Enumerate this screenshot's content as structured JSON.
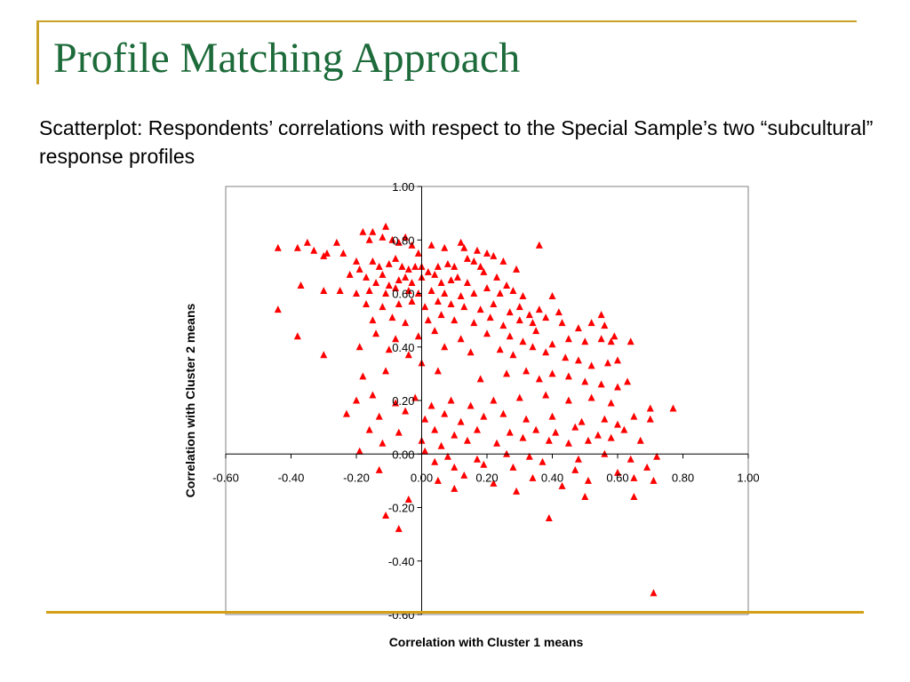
{
  "slide": {
    "title": "Profile Matching Approach",
    "subtitle": "Scatterplot:  Respondents’ correlations with respect to the Special Sample’s two “subcultural” response profiles"
  },
  "colors": {
    "title": "#1d6b3a",
    "accent_rule": "#c9a227",
    "marker": "#ff0000",
    "axis": "#000000",
    "plot_border": "#808080"
  },
  "chart_data": {
    "type": "scatter",
    "title": "",
    "xlabel": "Correlation with Cluster 1 means",
    "ylabel": "Correlation with Cluster 2 means",
    "xlim": [
      -0.6,
      1.0
    ],
    "ylim": [
      -0.6,
      1.0
    ],
    "xticks": [
      "-0.60",
      "-0.40",
      "-0.20",
      "0.00",
      "0.20",
      "0.40",
      "0.60",
      "0.80",
      "1.00"
    ],
    "yticks": [
      "-0.60",
      "-0.40",
      "-0.20",
      "0.00",
      "0.20",
      "0.40",
      "0.60",
      "0.80",
      "1.00"
    ],
    "grid": false,
    "legend": "none",
    "marker": "triangle",
    "series": [
      {
        "points": [
          [
            -0.44,
            0.77
          ],
          [
            -0.38,
            0.77
          ],
          [
            -0.35,
            0.79
          ],
          [
            -0.33,
            0.76
          ],
          [
            -0.3,
            0.74
          ],
          [
            -0.29,
            0.75
          ],
          [
            -0.26,
            0.79
          ],
          [
            -0.24,
            0.75
          ],
          [
            -0.2,
            0.72
          ],
          [
            -0.18,
            0.83
          ],
          [
            -0.16,
            0.8
          ],
          [
            -0.15,
            0.83
          ],
          [
            -0.12,
            0.81
          ],
          [
            -0.11,
            0.85
          ],
          [
            -0.09,
            0.8
          ],
          [
            -0.07,
            0.79
          ],
          [
            -0.05,
            0.81
          ],
          [
            -0.03,
            0.78
          ],
          [
            -0.01,
            0.75
          ],
          [
            0.03,
            0.78
          ],
          [
            0.07,
            0.77
          ],
          [
            0.12,
            0.79
          ],
          [
            0.13,
            0.77
          ],
          [
            0.17,
            0.76
          ],
          [
            0.2,
            0.75
          ],
          [
            0.22,
            0.74
          ],
          [
            0.25,
            0.72
          ],
          [
            0.29,
            0.69
          ],
          [
            0.36,
            0.78
          ],
          [
            -0.15,
            0.72
          ],
          [
            -0.13,
            0.7
          ],
          [
            -0.1,
            0.71
          ],
          [
            -0.08,
            0.73
          ],
          [
            -0.06,
            0.7
          ],
          [
            -0.04,
            0.69
          ],
          [
            -0.02,
            0.7
          ],
          [
            0.0,
            0.7
          ],
          [
            0.02,
            0.68
          ],
          [
            0.05,
            0.7
          ],
          [
            0.08,
            0.71
          ],
          [
            0.1,
            0.7
          ],
          [
            0.14,
            0.73
          ],
          [
            0.16,
            0.72
          ],
          [
            0.18,
            0.7
          ],
          [
            -0.22,
            0.67
          ],
          [
            -0.19,
            0.69
          ],
          [
            -0.17,
            0.66
          ],
          [
            -0.14,
            0.64
          ],
          [
            -0.12,
            0.67
          ],
          [
            -0.1,
            0.63
          ],
          [
            -0.07,
            0.65
          ],
          [
            -0.05,
            0.66
          ],
          [
            -0.03,
            0.64
          ],
          [
            0.0,
            0.66
          ],
          [
            0.04,
            0.67
          ],
          [
            0.06,
            0.64
          ],
          [
            0.09,
            0.65
          ],
          [
            0.11,
            0.66
          ],
          [
            0.14,
            0.64
          ],
          [
            0.19,
            0.68
          ],
          [
            0.23,
            0.66
          ],
          [
            0.26,
            0.63
          ],
          [
            -0.25,
            0.61
          ],
          [
            -0.2,
            0.6
          ],
          [
            -0.16,
            0.61
          ],
          [
            -0.11,
            0.6
          ],
          [
            -0.08,
            0.62
          ],
          [
            -0.04,
            0.61
          ],
          [
            -0.01,
            0.6
          ],
          [
            0.03,
            0.61
          ],
          [
            0.07,
            0.6
          ],
          [
            0.12,
            0.59
          ],
          [
            0.16,
            0.6
          ],
          [
            0.2,
            0.62
          ],
          [
            0.24,
            0.6
          ],
          [
            0.28,
            0.61
          ],
          [
            0.31,
            0.59
          ],
          [
            0.4,
            0.59
          ],
          [
            -0.37,
            0.63
          ],
          [
            -0.3,
            0.61
          ],
          [
            -0.44,
            0.54
          ],
          [
            -0.17,
            0.56
          ],
          [
            -0.12,
            0.55
          ],
          [
            -0.07,
            0.56
          ],
          [
            -0.03,
            0.57
          ],
          [
            0.01,
            0.55
          ],
          [
            0.05,
            0.57
          ],
          [
            0.09,
            0.56
          ],
          [
            0.13,
            0.55
          ],
          [
            0.18,
            0.54
          ],
          [
            0.22,
            0.56
          ],
          [
            0.27,
            0.53
          ],
          [
            0.3,
            0.55
          ],
          [
            0.33,
            0.52
          ],
          [
            0.36,
            0.54
          ],
          [
            0.42,
            0.53
          ],
          [
            0.55,
            0.52
          ],
          [
            -0.15,
            0.5
          ],
          [
            -0.09,
            0.51
          ],
          [
            -0.05,
            0.49
          ],
          [
            0.02,
            0.5
          ],
          [
            0.06,
            0.52
          ],
          [
            0.1,
            0.5
          ],
          [
            0.16,
            0.49
          ],
          [
            0.21,
            0.51
          ],
          [
            0.25,
            0.48
          ],
          [
            0.3,
            0.5
          ],
          [
            0.34,
            0.49
          ],
          [
            0.38,
            0.51
          ],
          [
            0.43,
            0.49
          ],
          [
            0.48,
            0.47
          ],
          [
            0.52,
            0.49
          ],
          [
            0.56,
            0.48
          ],
          [
            -0.38,
            0.44
          ],
          [
            -0.14,
            0.45
          ],
          [
            -0.08,
            0.43
          ],
          [
            -0.01,
            0.44
          ],
          [
            0.04,
            0.46
          ],
          [
            0.12,
            0.43
          ],
          [
            0.2,
            0.45
          ],
          [
            0.27,
            0.44
          ],
          [
            0.31,
            0.42
          ],
          [
            0.35,
            0.46
          ],
          [
            0.4,
            0.41
          ],
          [
            0.45,
            0.43
          ],
          [
            0.5,
            0.42
          ],
          [
            0.55,
            0.43
          ],
          [
            0.59,
            0.44
          ],
          [
            0.64,
            0.42
          ],
          [
            0.58,
            0.42
          ],
          [
            -0.3,
            0.37
          ],
          [
            -0.19,
            0.4
          ],
          [
            -0.1,
            0.39
          ],
          [
            -0.04,
            0.37
          ],
          [
            0.07,
            0.4
          ],
          [
            0.15,
            0.38
          ],
          [
            0.24,
            0.39
          ],
          [
            0.28,
            0.37
          ],
          [
            0.34,
            0.4
          ],
          [
            0.38,
            0.38
          ],
          [
            0.44,
            0.36
          ],
          [
            0.48,
            0.35
          ],
          [
            0.52,
            0.33
          ],
          [
            0.57,
            0.34
          ],
          [
            0.6,
            0.35
          ],
          [
            0.0,
            0.34
          ],
          [
            0.05,
            0.31
          ],
          [
            -0.18,
            0.29
          ],
          [
            -0.11,
            0.31
          ],
          [
            0.18,
            0.28
          ],
          [
            0.26,
            0.3
          ],
          [
            0.32,
            0.31
          ],
          [
            0.36,
            0.28
          ],
          [
            0.4,
            0.3
          ],
          [
            0.45,
            0.29
          ],
          [
            0.5,
            0.27
          ],
          [
            0.55,
            0.26
          ],
          [
            0.6,
            0.25
          ],
          [
            0.63,
            0.27
          ],
          [
            -0.2,
            0.2
          ],
          [
            -0.15,
            0.22
          ],
          [
            -0.08,
            0.19
          ],
          [
            -0.02,
            0.21
          ],
          [
            0.03,
            0.18
          ],
          [
            0.09,
            0.2
          ],
          [
            0.15,
            0.18
          ],
          [
            0.22,
            0.2
          ],
          [
            0.3,
            0.21
          ],
          [
            0.38,
            0.22
          ],
          [
            0.45,
            0.2
          ],
          [
            0.52,
            0.21
          ],
          [
            0.58,
            0.19
          ],
          [
            0.7,
            0.17
          ],
          [
            0.77,
            0.17
          ],
          [
            -0.23,
            0.15
          ],
          [
            -0.13,
            0.14
          ],
          [
            -0.05,
            0.16
          ],
          [
            0.01,
            0.13
          ],
          [
            0.07,
            0.15
          ],
          [
            0.12,
            0.12
          ],
          [
            0.19,
            0.14
          ],
          [
            0.25,
            0.15
          ],
          [
            0.32,
            0.13
          ],
          [
            0.4,
            0.14
          ],
          [
            0.49,
            0.12
          ],
          [
            0.56,
            0.13
          ],
          [
            0.6,
            0.11
          ],
          [
            0.65,
            0.14
          ],
          [
            0.7,
            0.13
          ],
          [
            -0.16,
            0.09
          ],
          [
            -0.07,
            0.08
          ],
          [
            0.04,
            0.09
          ],
          [
            0.1,
            0.07
          ],
          [
            0.17,
            0.09
          ],
          [
            0.27,
            0.08
          ],
          [
            0.35,
            0.09
          ],
          [
            0.41,
            0.08
          ],
          [
            0.47,
            0.1
          ],
          [
            0.54,
            0.07
          ],
          [
            0.62,
            0.09
          ],
          [
            -0.12,
            0.04
          ],
          [
            0.0,
            0.05
          ],
          [
            0.06,
            0.03
          ],
          [
            0.14,
            0.05
          ],
          [
            0.23,
            0.04
          ],
          [
            0.31,
            0.06
          ],
          [
            0.39,
            0.05
          ],
          [
            0.45,
            0.04
          ],
          [
            0.51,
            0.05
          ],
          [
            0.58,
            0.06
          ],
          [
            0.67,
            0.05
          ],
          [
            -0.19,
            0.01
          ],
          [
            0.01,
            0.01
          ],
          [
            0.08,
            -0.01
          ],
          [
            0.17,
            -0.02
          ],
          [
            0.26,
            0.0
          ],
          [
            0.33,
            -0.01
          ],
          [
            0.48,
            -0.02
          ],
          [
            0.56,
            0.0
          ],
          [
            0.64,
            -0.02
          ],
          [
            0.72,
            -0.01
          ],
          [
            0.04,
            -0.03
          ],
          [
            0.1,
            -0.05
          ],
          [
            0.19,
            -0.04
          ],
          [
            0.28,
            -0.05
          ],
          [
            0.37,
            -0.03
          ],
          [
            0.47,
            -0.06
          ],
          [
            0.6,
            -0.07
          ],
          [
            0.69,
            -0.05
          ],
          [
            -0.13,
            -0.06
          ],
          [
            0.05,
            -0.1
          ],
          [
            0.13,
            -0.08
          ],
          [
            0.22,
            -0.11
          ],
          [
            0.34,
            -0.09
          ],
          [
            0.43,
            -0.12
          ],
          [
            0.51,
            -0.1
          ],
          [
            0.65,
            -0.09
          ],
          [
            0.71,
            -0.1
          ],
          [
            0.1,
            -0.13
          ],
          [
            0.29,
            -0.14
          ],
          [
            0.5,
            -0.16
          ],
          [
            0.65,
            -0.16
          ],
          [
            -0.04,
            -0.17
          ],
          [
            -0.11,
            -0.23
          ],
          [
            0.39,
            -0.24
          ],
          [
            -0.07,
            -0.28
          ],
          [
            0.71,
            -0.52
          ]
        ]
      }
    ]
  }
}
